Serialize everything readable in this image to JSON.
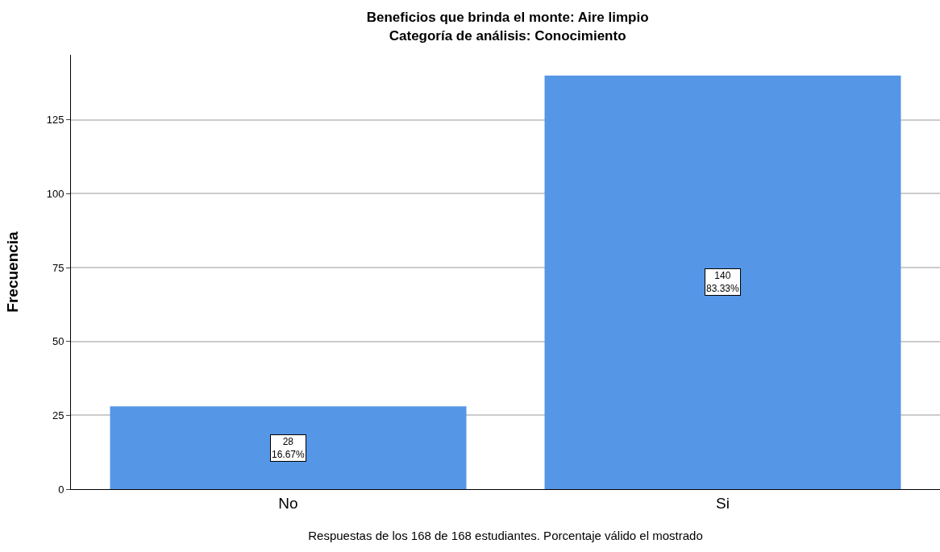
{
  "chart_data": {
    "type": "bar",
    "title": "Beneficios que brinda el monte: Aire limpio\nCategoría de análisis: Conocimiento",
    "xlabel": "Respuestas de los 168 de 168 estudiantes. Porcentaje válido el mostrado",
    "ylabel": "Frecuencia",
    "categories": [
      "No",
      "Si"
    ],
    "values": [
      28,
      140
    ],
    "value_labels": [
      "28\n16.67%",
      "140\n83.33%"
    ],
    "color": "#5596e6",
    "ylim": [
      0,
      147
    ],
    "yticks": [
      0,
      25,
      50,
      75,
      100,
      125
    ],
    "grid": "y"
  }
}
